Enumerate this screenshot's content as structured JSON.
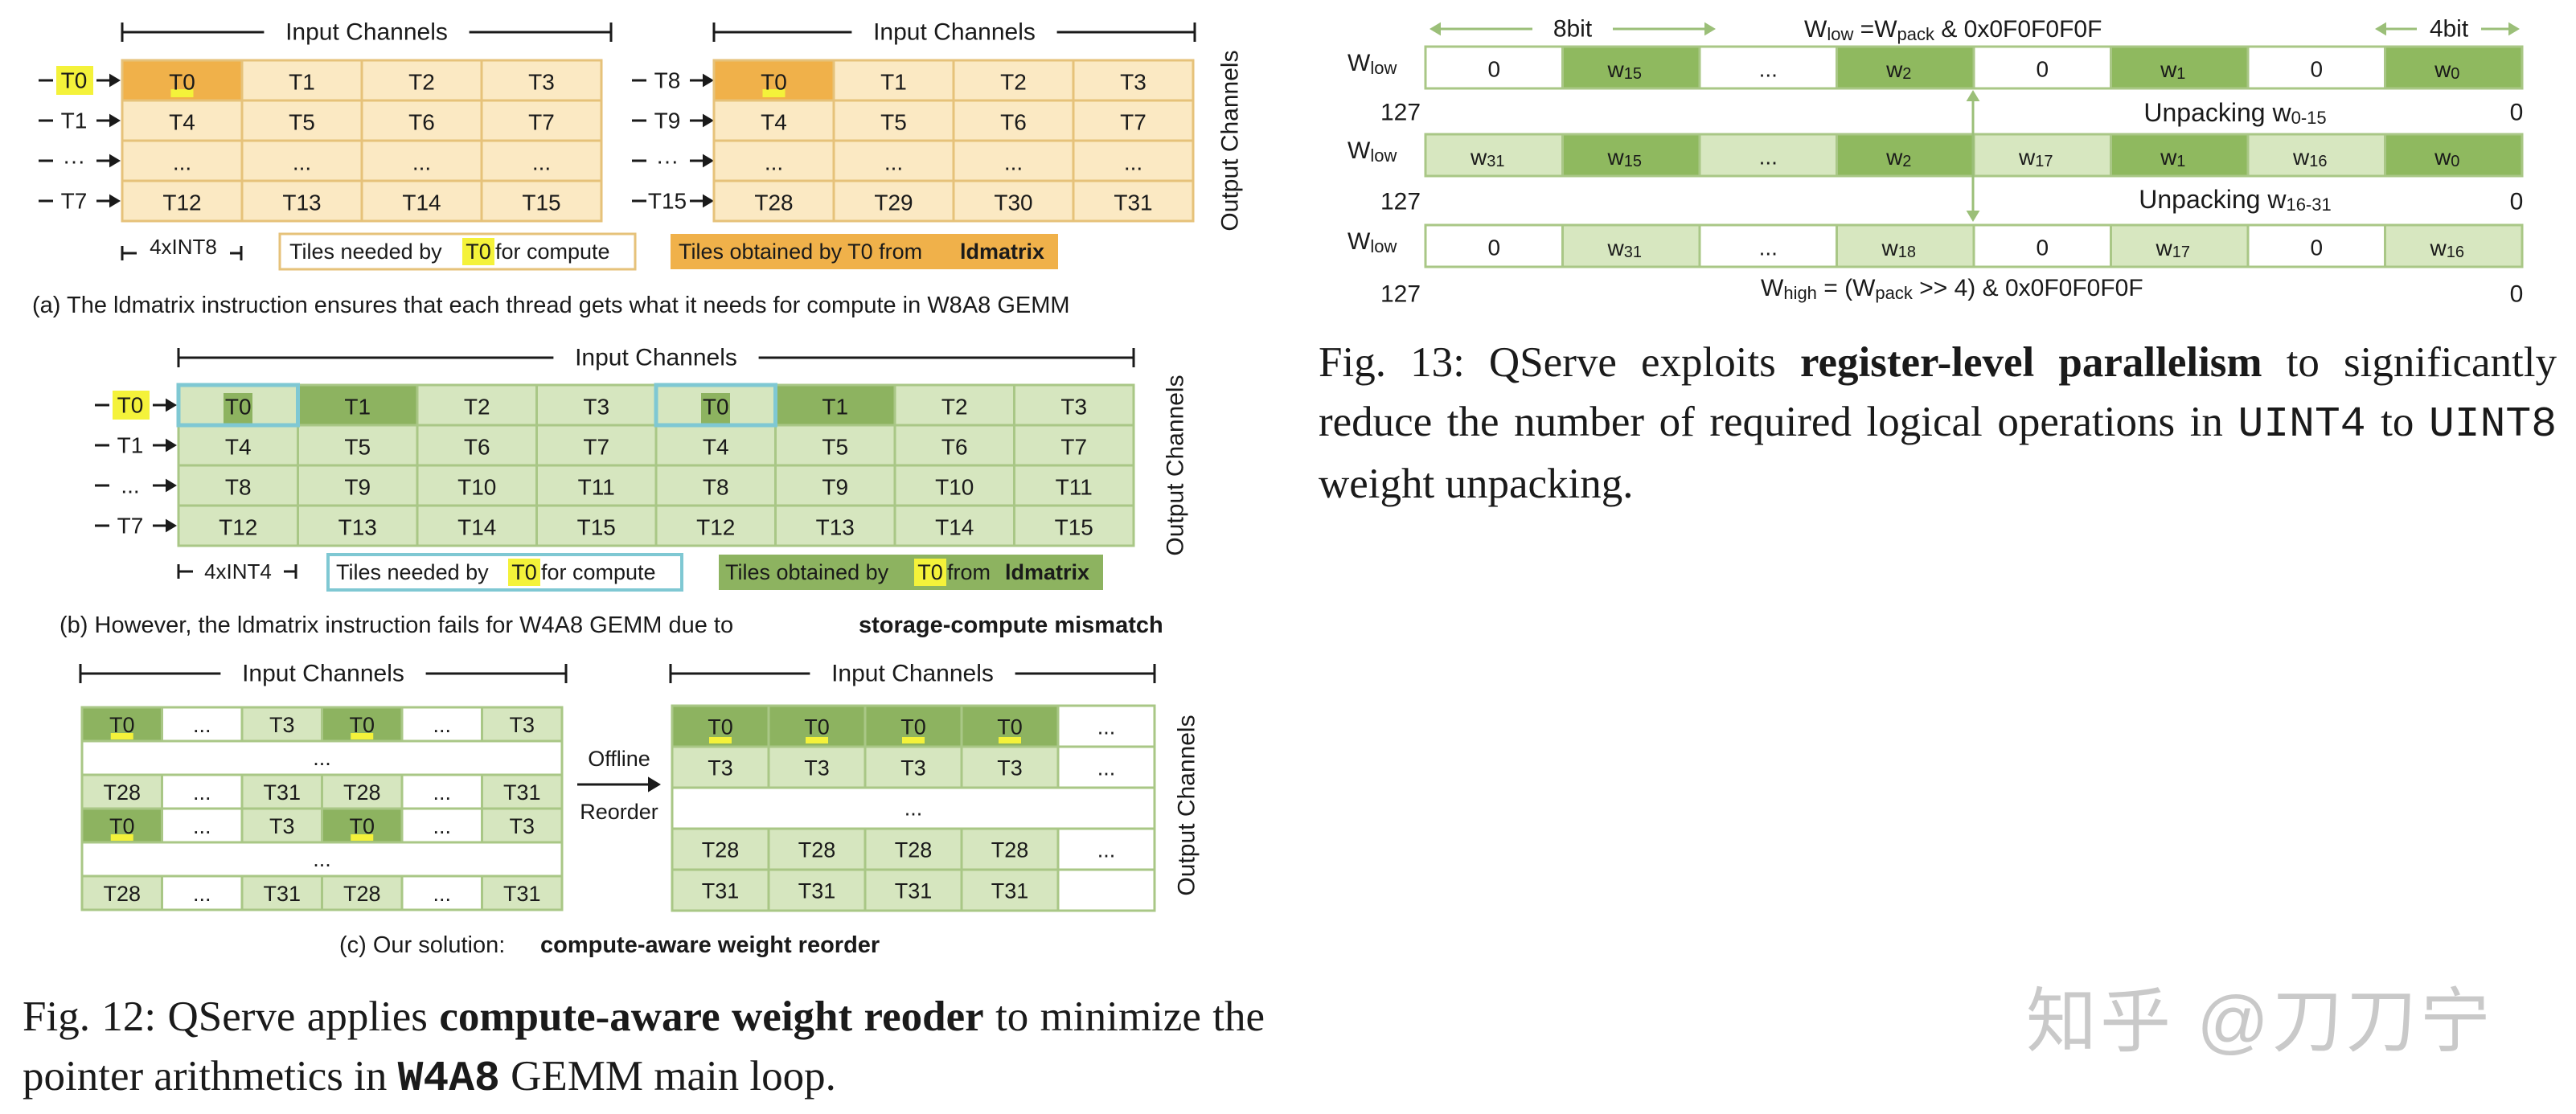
{
  "colors": {
    "orange_fill": "#f0b14a",
    "orange_light": "#fbe9c3",
    "orange_border": "#e6c27a",
    "green_dark": "#8db360",
    "green_light": "#d6e6bf",
    "green_border": "#a9c786",
    "cyan_border": "#7fc8d3",
    "yellow_highlight": "#f4f23a",
    "text": "#1a1a1a"
  },
  "fig12": {
    "a": {
      "input_channels_label": "Input Channels",
      "output_channels_label": "Output Channels",
      "row_labels_left": [
        "T0",
        "T1",
        "···",
        "T7"
      ],
      "row_labels_right": [
        "T8",
        "T9",
        "···",
        "T15"
      ],
      "left_grid": [
        [
          "T0",
          "T1",
          "T2",
          "T3"
        ],
        [
          "T4",
          "T5",
          "T6",
          "T7"
        ],
        [
          "...",
          "...",
          "...",
          "..."
        ],
        [
          "T12",
          "T13",
          "T14",
          "T15"
        ]
      ],
      "right_grid": [
        [
          "T0",
          "T1",
          "T2",
          "T3"
        ],
        [
          "T4",
          "T5",
          "T6",
          "T7"
        ],
        [
          "...",
          "...",
          "...",
          "..."
        ],
        [
          "T28",
          "T29",
          "T30",
          "T31"
        ]
      ],
      "width_label": "4xINT8",
      "legend_needed_pre": "Tiles needed by ",
      "legend_needed_thread": "T0",
      "legend_needed_post": " for compute",
      "legend_obtained_pre": "Tiles obtained by T0 from ",
      "legend_obtained_bold": "ldmatrix",
      "caption": "(a) The ldmatrix instruction ensures that each thread gets what it needs for compute in W8A8 GEMM"
    },
    "b": {
      "input_channels_label": "Input Channels",
      "output_channels_label": "Output Channels",
      "row_labels": [
        "T0",
        "T1",
        "...",
        "T7"
      ],
      "grid": [
        [
          "T0",
          "T1",
          "T2",
          "T3",
          "T0",
          "T1",
          "T2",
          "T3"
        ],
        [
          "T4",
          "T5",
          "T6",
          "T7",
          "T4",
          "T5",
          "T6",
          "T7"
        ],
        [
          "T8",
          "T9",
          "T10",
          "T11",
          "T8",
          "T9",
          "T10",
          "T11"
        ],
        [
          "T12",
          "T13",
          "T14",
          "T15",
          "T12",
          "T13",
          "T14",
          "T15"
        ]
      ],
      "width_label": "4xINT4",
      "legend_needed_pre": "Tiles needed by ",
      "legend_needed_thread": "T0",
      "legend_needed_post": " for compute",
      "legend_obtained_pre": "Tiles obtained by ",
      "legend_obtained_thread": "T0",
      "legend_obtained_mid": " from ",
      "legend_obtained_bold": "ldmatrix",
      "caption_pre": "(b) However, the ldmatrix instruction fails for W4A8 GEMM due to ",
      "caption_bold": "storage-compute mismatch"
    },
    "c": {
      "input_channels_label_left": "Input Channels",
      "input_channels_label_right": "Input Channels",
      "output_channels_label": "Output Channels",
      "left_grid": [
        [
          "T0",
          "...",
          "T3",
          "T0",
          "...",
          "T3"
        ],
        [
          "..."
        ],
        [
          "T28",
          "...",
          "T31",
          "T28",
          "...",
          "T31"
        ],
        [
          "T0",
          "...",
          "T3",
          "T0",
          "...",
          "T3"
        ],
        [
          "..."
        ],
        [
          "T28",
          "...",
          "T31",
          "T28",
          "...",
          "T31"
        ]
      ],
      "right_grid": [
        [
          "T0",
          "T0",
          "T0",
          "T0",
          "..."
        ],
        [
          "T3",
          "T3",
          "T3",
          "T3",
          "..."
        ],
        [
          "..."
        ],
        [
          "T28",
          "T28",
          "T28",
          "T28",
          "..."
        ],
        [
          "T31",
          "T31",
          "T31",
          "T31",
          ""
        ]
      ],
      "reorder_label_1": "Offline",
      "reorder_label_2": "Reorder",
      "caption_pre": "(c) Our solution: ",
      "caption_bold": "compute-aware weight reorder"
    },
    "caption": {
      "prefix": "Fig. 12: QServe applies ",
      "bold": "compute-aware weight reoder",
      "mid": " to minimize the pointer arithmetics in ",
      "mono": "W4A8",
      "suffix": " GEMM main loop."
    }
  },
  "fig13": {
    "top_8bit_label": "8bit",
    "top_formula_pre": "W",
    "top_formula_sub": "low",
    "top_formula_mid": " =W",
    "top_formula_sub2": "pack",
    "top_formula_post": " & 0x0F0F0F0F",
    "top_4bit_label": "4bit",
    "row_label": "W",
    "row_label_sub": "low",
    "rows": [
      [
        {
          "t": "0",
          "c": ""
        },
        {
          "t": "w",
          "s": "15",
          "c": "g"
        },
        {
          "t": "...",
          "c": ""
        },
        {
          "t": "w",
          "s": "2",
          "c": "g"
        },
        {
          "t": "0",
          "c": ""
        },
        {
          "t": "w",
          "s": "1",
          "c": "g"
        },
        {
          "t": "0",
          "c": ""
        },
        {
          "t": "w",
          "s": "0",
          "c": "g"
        }
      ],
      [
        {
          "t": "w",
          "s": "31",
          "c": "l"
        },
        {
          "t": "w",
          "s": "15",
          "c": "g"
        },
        {
          "t": "...",
          "c": "l"
        },
        {
          "t": "w",
          "s": "2",
          "c": "g"
        },
        {
          "t": "w",
          "s": "17",
          "c": "l"
        },
        {
          "t": "w",
          "s": "1",
          "c": "g"
        },
        {
          "t": "w",
          "s": "16",
          "c": "l"
        },
        {
          "t": "w",
          "s": "0",
          "c": "g"
        }
      ],
      [
        {
          "t": "0",
          "c": ""
        },
        {
          "t": "w",
          "s": "31",
          "c": "l"
        },
        {
          "t": "...",
          "c": ""
        },
        {
          "t": "w",
          "s": "18",
          "c": "l"
        },
        {
          "t": "0",
          "c": ""
        },
        {
          "t": "w",
          "s": "17",
          "c": "l"
        },
        {
          "t": "0",
          "c": ""
        },
        {
          "t": "w",
          "s": "16",
          "c": "l"
        }
      ]
    ],
    "bit_high": "127",
    "bit_low": "0",
    "unpack1_pre": "Unpacking w",
    "unpack1_sub": "0-15",
    "unpack2_pre": "Unpacking w",
    "unpack2_sub": "16-31",
    "bottom_formula_pre": "W",
    "bottom_formula_sub": "high",
    "bottom_formula_mid": " = (W",
    "bottom_formula_sub2": "pack",
    "bottom_formula_post": " >> 4) & 0x0F0F0F0F",
    "caption": {
      "prefix": "Fig. 13: QServe exploits ",
      "bold": "register-level parallelism",
      "mid": " to significantly reduce the number of required logical operations in ",
      "mono1": "UINT4",
      "to": " to ",
      "mono2": "UINT8",
      "suffix": " weight unpacking."
    }
  },
  "watermark": "知乎 @刀刀宁"
}
